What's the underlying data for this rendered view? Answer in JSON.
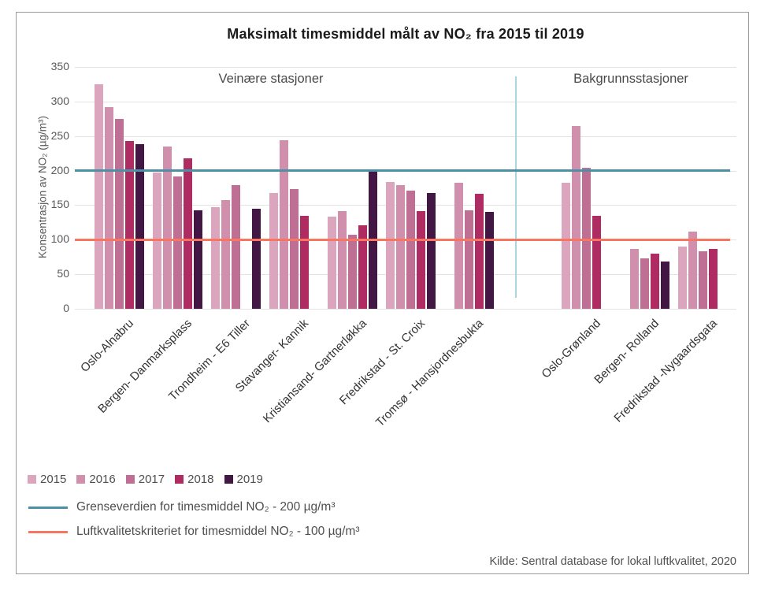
{
  "source": "Kilde: Sentral database for lokal luftkvalitet, 2020",
  "chart_data": {
    "type": "bar",
    "title": "Maksimalt timesmiddel målt av NO₂ fra 2015 til 2019",
    "ylabel": "Konsentrasjon av NO₂ (µg/m³)",
    "ylim": [
      0,
      350
    ],
    "yticks": [
      0,
      50,
      100,
      150,
      200,
      250,
      300,
      350
    ],
    "grid": true,
    "legend_position": "bottom-left",
    "years": [
      "2015",
      "2016",
      "2017",
      "2018",
      "2019"
    ],
    "year_colors": [
      "#DCA5BE",
      "#D08FAD",
      "#C06F94",
      "#AF2C63",
      "#421744"
    ],
    "sections": [
      {
        "label": "Veinære stasjoner"
      },
      {
        "label": "Bakgrunnsstasjoner"
      }
    ],
    "groups": [
      {
        "station": "Oslo-Alnabru",
        "section": 0,
        "values": [
          325,
          292,
          275,
          243,
          238
        ]
      },
      {
        "station": "Bergen- Danmarksplass",
        "section": 0,
        "values": [
          197,
          235,
          191,
          218,
          142
        ]
      },
      {
        "station": "Trondheim - E6 Tiller",
        "section": 0,
        "values": [
          147,
          157,
          179,
          null,
          145
        ]
      },
      {
        "station": "Stavanger- Kannik",
        "section": 0,
        "values": [
          168,
          244,
          173,
          134,
          null
        ]
      },
      {
        "station": "Kristiansand- Gartnerløkka",
        "section": 0,
        "values": [
          133,
          141,
          107,
          121,
          200
        ]
      },
      {
        "station": "Fredrikstad - St. Croix",
        "section": 0,
        "values": [
          184,
          179,
          171,
          141,
          168
        ]
      },
      {
        "station": "Tromsø - Hansjordnesbukta",
        "section": 0,
        "values": [
          null,
          182,
          143,
          166,
          140
        ]
      },
      {
        "station": "Oslo-Grønland",
        "section": 1,
        "values": [
          182,
          264,
          204,
          135,
          null
        ]
      },
      {
        "station": "Bergen- Rolland",
        "section": 1,
        "values": [
          null,
          87,
          73,
          80,
          68
        ]
      },
      {
        "station": "Fredrikstad -Nygaardsgata",
        "section": 1,
        "values": [
          90,
          112,
          83,
          87,
          null
        ]
      }
    ],
    "reference_lines": [
      {
        "label": "Grenseverdien for timesmiddel NO₂ - 200 µg/m³",
        "value": 200,
        "color": "#4D8FA5"
      },
      {
        "label": "Luftkvalitetskriteriet for timesmiddel NO₂ - 100 µg/m³",
        "value": 100,
        "color": "#F8765F"
      }
    ]
  }
}
